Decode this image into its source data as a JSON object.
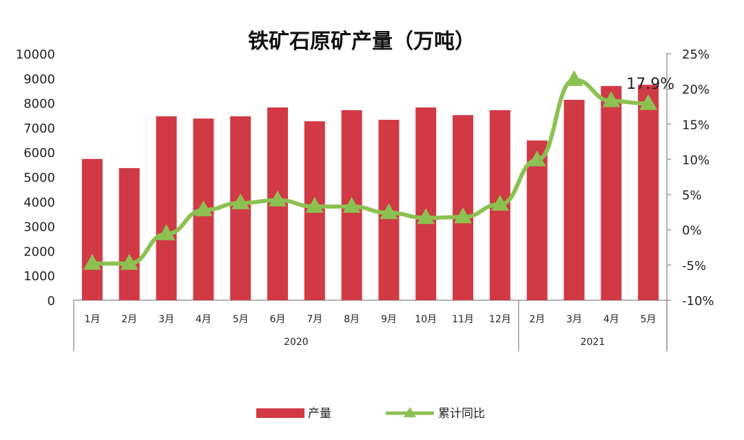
{
  "chart_data": {
    "type": "bar+line",
    "title": "铁矿石原矿产量（万吨）",
    "groups": [
      {
        "label": "2020",
        "categories": [
          "1月",
          "2月",
          "3月",
          "4月",
          "5月",
          "6月",
          "7月",
          "8月",
          "9月",
          "10月",
          "11月",
          "12月"
        ]
      },
      {
        "label": "2021",
        "categories": [
          "2月",
          "3月",
          "4月",
          "5月"
        ]
      }
    ],
    "categories": [
      "1月",
      "2月",
      "3月",
      "4月",
      "5月",
      "6月",
      "7月",
      "8月",
      "9月",
      "10月",
      "11月",
      "12月",
      "2月",
      "3月",
      "4月",
      "5月"
    ],
    "series": [
      {
        "name": "产量",
        "type": "bar",
        "axis": "left",
        "color": "#d13a45",
        "values": [
          5730,
          5360,
          7460,
          7370,
          7460,
          7820,
          7260,
          7710,
          7320,
          7820,
          7510,
          7710,
          6480,
          8130,
          8690,
          8740
        ]
      },
      {
        "name": "累计同比",
        "type": "line",
        "axis": "right",
        "color": "#8cc152",
        "marker": "triangle",
        "values": [
          -4.8,
          -4.8,
          -0.6,
          2.8,
          3.8,
          4.2,
          3.3,
          3.3,
          2.4,
          1.7,
          1.8,
          3.6,
          9.9,
          21.3,
          18.3,
          17.9
        ]
      }
    ],
    "annotations": [
      "17.9%"
    ],
    "left_axis": {
      "ylim": [
        0,
        10000
      ],
      "ticks": [
        "0",
        "1000",
        "2000",
        "3000",
        "4000",
        "5000",
        "6000",
        "7000",
        "8000",
        "9000",
        "10000"
      ]
    },
    "right_axis": {
      "ylim": [
        -10,
        25
      ],
      "ticks": [
        "-10%",
        "-5%",
        "0%",
        "5%",
        "10%",
        "15%",
        "20%",
        "25%"
      ]
    },
    "grid": false,
    "legend_position": "bottom"
  }
}
